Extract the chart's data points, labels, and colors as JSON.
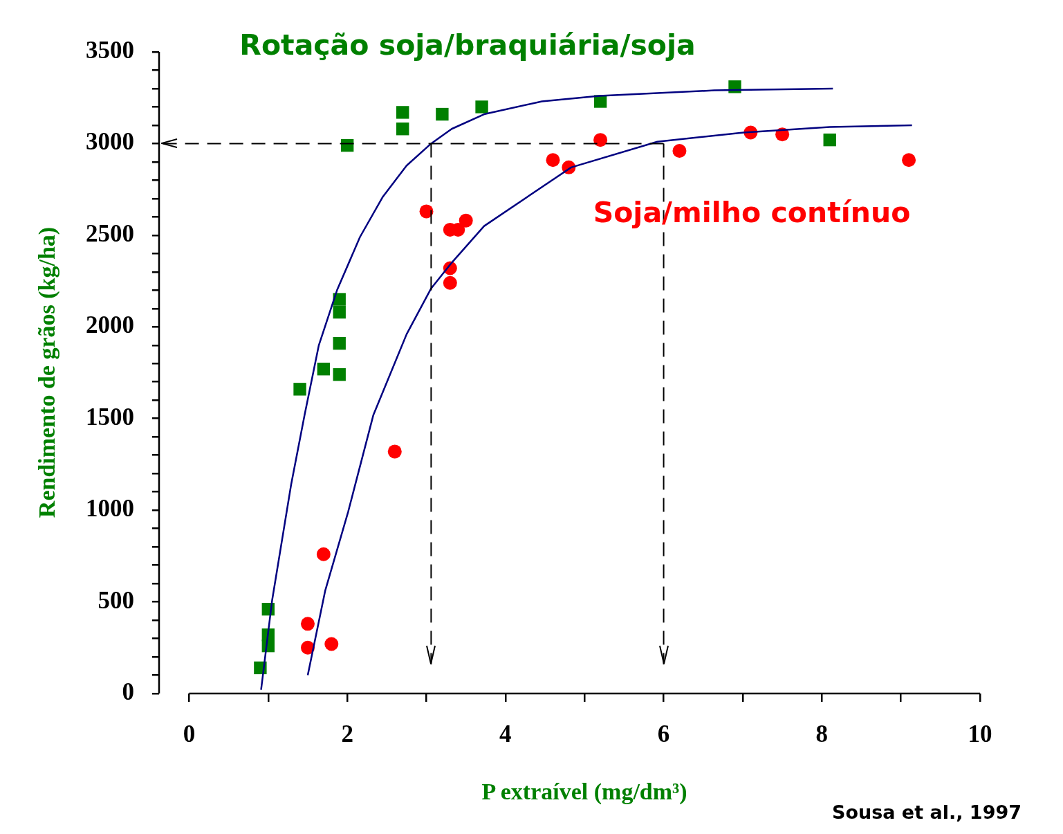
{
  "chart_data": {
    "type": "scatter",
    "xlabel": "P extraível (mg/dm³)",
    "ylabel": "Rendimento de grãos (kg/ha)",
    "annotations": [
      "Sousa et al., 1997"
    ],
    "xlim": [
      -0.38,
      10
    ],
    "ylim": [
      0,
      3500
    ],
    "xticks": [
      0,
      {
        "value": 1,
        "label": null
      },
      2,
      {
        "value": 3,
        "label": null
      },
      4,
      {
        "value": 5,
        "label": null
      },
      6,
      {
        "value": 7,
        "label": null
      },
      8,
      {
        "value": 9,
        "label": null
      },
      10
    ],
    "yticks": [
      0,
      {
        "value": 100,
        "label": null
      },
      {
        "value": 200,
        "label": null
      },
      {
        "value": 300,
        "label": null
      },
      {
        "value": 400,
        "label": null
      },
      500,
      {
        "value": 600,
        "label": null
      },
      {
        "value": 700,
        "label": null
      },
      {
        "value": 800,
        "label": null
      },
      {
        "value": 900,
        "label": null
      },
      1000,
      {
        "value": 1100,
        "label": null
      },
      {
        "value": 1200,
        "label": null
      },
      {
        "value": 1300,
        "label": null
      },
      {
        "value": 1400,
        "label": null
      },
      1500,
      {
        "value": 1600,
        "label": null
      },
      {
        "value": 1700,
        "label": null
      },
      {
        "value": 1800,
        "label": null
      },
      {
        "value": 1900,
        "label": null
      },
      2000,
      {
        "value": 2100,
        "label": null
      },
      {
        "value": 2200,
        "label": null
      },
      {
        "value": 2300,
        "label": null
      },
      {
        "value": 2400,
        "label": null
      },
      2500,
      {
        "value": 2600,
        "label": null
      },
      {
        "value": 2700,
        "label": null
      },
      {
        "value": 2800,
        "label": null
      },
      {
        "value": 2900,
        "label": null
      },
      3000,
      {
        "value": 3100,
        "label": null
      },
      {
        "value": 3200,
        "label": null
      },
      {
        "value": 3300,
        "label": null
      },
      {
        "value": 3400,
        "label": null
      },
      3500
    ],
    "grid": false,
    "legend": false,
    "ref_lines": [
      {
        "axis": "y",
        "value": 3000,
        "label": null,
        "color": "#000000",
        "line_style": "dashed"
      },
      {
        "axis": "x",
        "value": 3.06,
        "label": null,
        "color": "#000000",
        "line_style": "dashed"
      },
      {
        "axis": "x",
        "value": 6.0,
        "label": null,
        "color": "#000000",
        "line_style": "dashed"
      }
    ],
    "series": [
      {
        "name": "Rotação soja/braquiária/soja",
        "type": "scatter",
        "color": "#008000",
        "marker": "square",
        "x": [
          0.9,
          1.0,
          1.0,
          1.0,
          1.4,
          1.7,
          1.9,
          1.9,
          1.9,
          1.9,
          2.0,
          2.7,
          2.7,
          3.2,
          3.7,
          5.2,
          6.9,
          8.1
        ],
        "values": [
          140,
          460,
          320,
          260,
          1660,
          1770,
          1740,
          1910,
          2080,
          2150,
          2990,
          3080,
          3170,
          3160,
          3200,
          3230,
          3310,
          3020
        ]
      },
      {
        "name": "Soja/milho contínuo",
        "type": "scatter",
        "color": "#ff0000",
        "marker": "circle",
        "x": [
          1.5,
          1.5,
          1.7,
          1.8,
          2.6,
          3.0,
          3.3,
          3.4,
          3.5,
          3.3,
          3.3,
          4.6,
          4.8,
          5.2,
          6.2,
          7.1,
          7.5,
          9.1
        ],
        "values": [
          250,
          380,
          760,
          270,
          1320,
          2630,
          2530,
          2530,
          2580,
          2320,
          2240,
          2910,
          2870,
          3020,
          2960,
          3060,
          3050,
          2910
        ]
      },
      {
        "type": "line",
        "color": "#000080",
        "marker": "none",
        "x": [
          0.91,
          1.05,
          1.29,
          1.46,
          1.64,
          1.87,
          2.16,
          2.45,
          2.75,
          3.06,
          3.32,
          3.73,
          4.46,
          5.19,
          6.64,
          8.14
        ],
        "values": [
          20,
          510,
          1140,
          1520,
          1900,
          2200,
          2490,
          2710,
          2880,
          3000,
          3080,
          3160,
          3230,
          3260,
          3290,
          3300
        ]
      },
      {
        "type": "line",
        "color": "#000080",
        "marker": "none",
        "x": [
          1.5,
          1.72,
          2.01,
          2.33,
          2.75,
          3.06,
          3.32,
          3.73,
          4.83,
          5.92,
          7.01,
          8.1,
          9.14
        ],
        "values": [
          100,
          560,
          990,
          1520,
          1960,
          2210,
          2350,
          2550,
          2870,
          3010,
          3060,
          3090,
          3100
        ]
      }
    ]
  }
}
